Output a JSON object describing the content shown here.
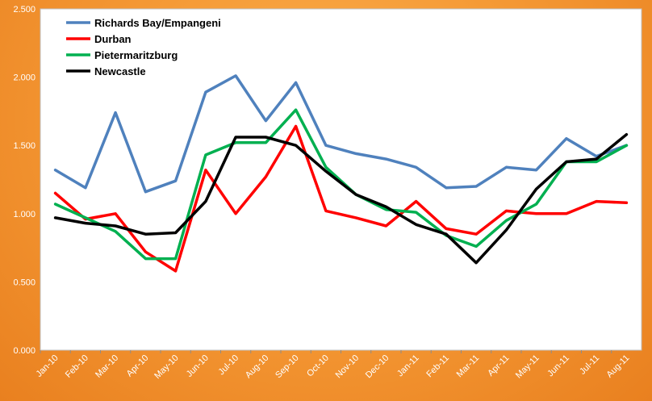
{
  "chart_data": {
    "type": "line",
    "categories": [
      "Jan-10",
      "Feb-10",
      "Mar-10",
      "Apr-10",
      "May-10",
      "Jun-10",
      "Jul-10",
      "Aug-10",
      "Sep-10",
      "Oct-10",
      "Nov-10",
      "Dec-10",
      "Jan-11",
      "Feb-11",
      "Mar-11",
      "Apr-11",
      "May-11",
      "Jun-11",
      "Jul-11",
      "Aug-11"
    ],
    "ylim": [
      0,
      2.5
    ],
    "yticks": [
      "0.000",
      "0.500",
      "1.000",
      "1.500",
      "2.000",
      "2.500"
    ],
    "grid": false,
    "legend_position": "top-left",
    "series": [
      {
        "name": "Richards Bay/Empangeni",
        "color": "#4f81bd",
        "values": [
          1.32,
          1.19,
          1.74,
          1.16,
          1.24,
          1.89,
          2.01,
          1.68,
          1.96,
          1.5,
          1.44,
          1.4,
          1.34,
          1.19,
          1.2,
          1.34,
          1.32,
          1.55,
          1.42,
          1.5
        ]
      },
      {
        "name": "Durban",
        "color": "#ff0000",
        "values": [
          1.15,
          0.96,
          1.0,
          0.72,
          0.58,
          1.32,
          1.0,
          1.27,
          1.64,
          1.02,
          0.97,
          0.91,
          1.09,
          0.89,
          0.85,
          1.02,
          1.0,
          1.0,
          1.09,
          1.08
        ]
      },
      {
        "name": "Pietermaritzburg",
        "color": "#00b050",
        "values": [
          1.07,
          0.97,
          0.87,
          0.67,
          0.67,
          1.43,
          1.52,
          1.52,
          1.76,
          1.34,
          1.14,
          1.03,
          1.01,
          0.84,
          0.76,
          0.95,
          1.07,
          1.38,
          1.38,
          1.5
        ]
      },
      {
        "name": "Newcastle",
        "color": "#000000",
        "values": [
          0.97,
          0.93,
          0.91,
          0.85,
          0.86,
          1.09,
          1.56,
          1.56,
          1.5,
          1.31,
          1.14,
          1.05,
          0.92,
          0.85,
          0.64,
          0.88,
          1.18,
          1.38,
          1.4,
          1.58
        ]
      }
    ]
  }
}
